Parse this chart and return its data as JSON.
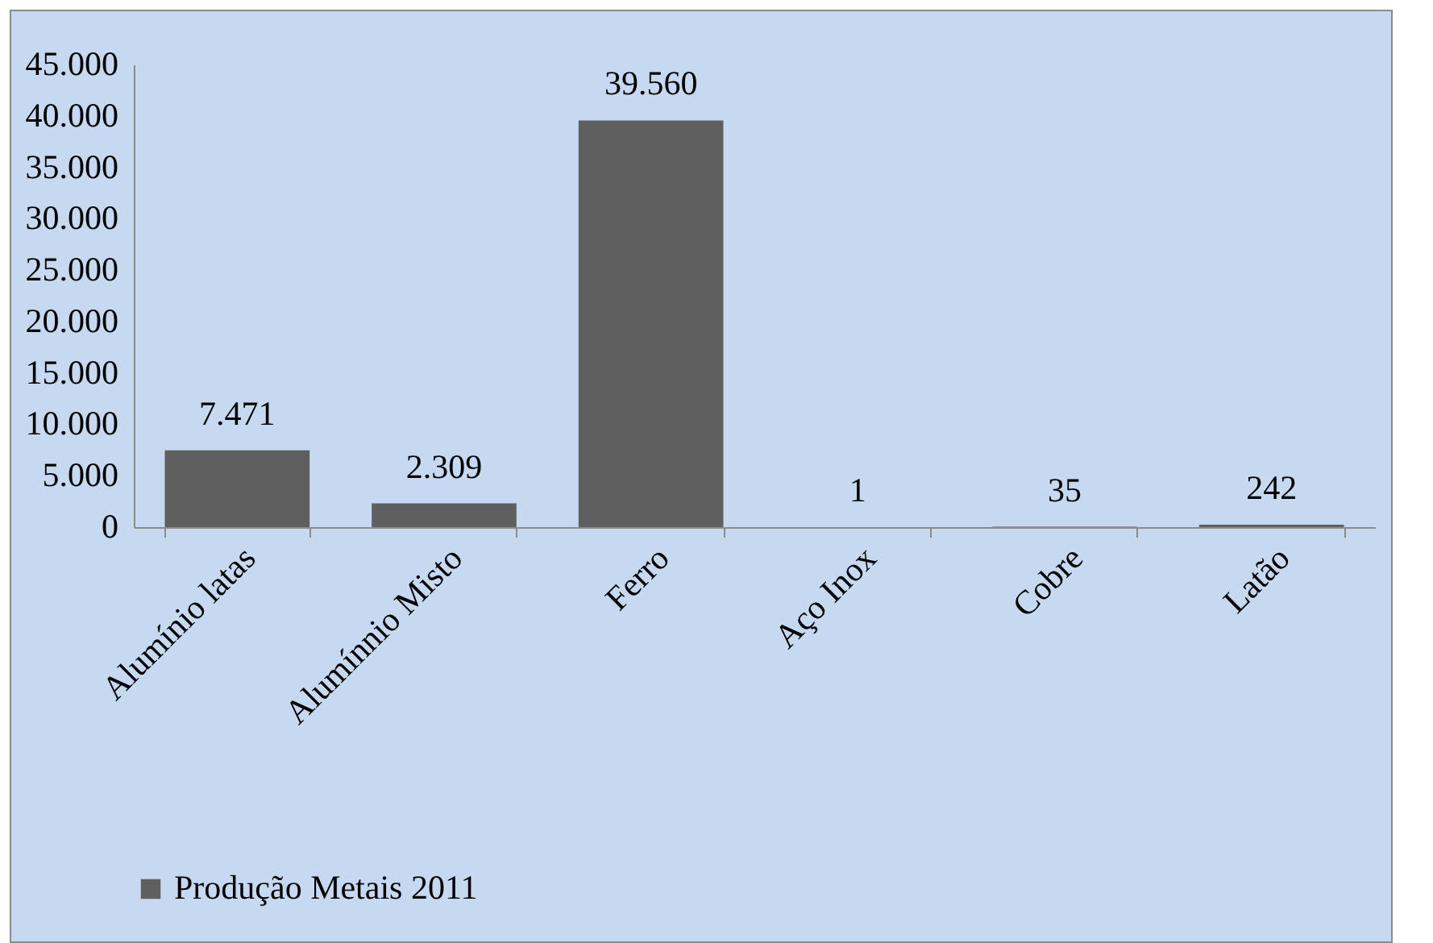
{
  "chart_data": {
    "type": "bar",
    "categories": [
      "Alumínio latas",
      "Alumínnio Misto",
      "Ferro",
      "Aço Inox",
      "Cobre",
      "Latão"
    ],
    "series": [
      {
        "name": "Produção Metais 2011",
        "color": "#5f5f5f",
        "values": [
          7471,
          2309,
          39560,
          1,
          35,
          242
        ],
        "value_labels": [
          "7.471",
          "2.309",
          "39.560",
          "1",
          "35",
          "242"
        ]
      }
    ],
    "ylim": [
      0,
      45000
    ],
    "yticks": [
      {
        "value": 0,
        "label": "0"
      },
      {
        "value": 5000,
        "label": "5.000"
      },
      {
        "value": 10000,
        "label": "10.000"
      },
      {
        "value": 15000,
        "label": "15.000"
      },
      {
        "value": 20000,
        "label": "20.000"
      },
      {
        "value": 25000,
        "label": "25.000"
      },
      {
        "value": 30000,
        "label": "30.000"
      },
      {
        "value": 35000,
        "label": "35.000"
      },
      {
        "value": 40000,
        "label": "40.000"
      },
      {
        "value": 45000,
        "label": "45.000"
      }
    ],
    "grid": false,
    "legend": "bottom"
  }
}
